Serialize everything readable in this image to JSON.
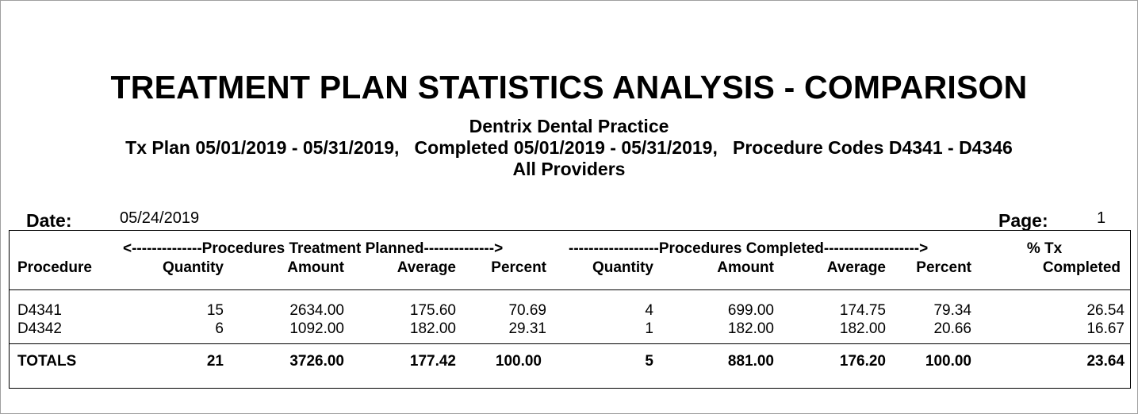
{
  "report": {
    "title": "TREATMENT PLAN STATISTICS ANALYSIS - COMPARISON",
    "practice": "Dentrix Dental Practice",
    "criteria": "Tx Plan 05/01/2019 - 05/31/2019,   Completed 05/01/2019 - 05/31/2019,   Procedure Codes D4341 - D4346",
    "providers": "All Providers",
    "date_label": "Date:",
    "date_value": "05/24/2019",
    "page_label": "Page:",
    "page_value": "1"
  },
  "table": {
    "group_planned": "<--------------Procedures Treatment Planned-------------->",
    "group_completed": "------------------Procedures Completed------------------->",
    "group_pct_top": "% Tx",
    "headers": {
      "procedure": "Procedure",
      "quantity": "Quantity",
      "amount": "Amount",
      "average": "Average",
      "percent": "Percent",
      "c_quantity": "Quantity",
      "c_amount": "Amount",
      "c_average": "Average",
      "c_percent": "Percent",
      "completed": "Completed"
    },
    "rows": [
      {
        "procedure": "D4341",
        "quantity": "15",
        "amount": "2634.00",
        "average": "175.60",
        "percent": "70.69",
        "c_quantity": "4",
        "c_amount": "699.00",
        "c_average": "174.75",
        "c_percent": "79.34",
        "completed": "26.54"
      },
      {
        "procedure": "D4342",
        "quantity": "6",
        "amount": "1092.00",
        "average": "182.00",
        "percent": "29.31",
        "c_quantity": "1",
        "c_amount": "182.00",
        "c_average": "182.00",
        "c_percent": "20.66",
        "completed": "16.67"
      }
    ],
    "totals": {
      "procedure": "TOTALS",
      "quantity": "21",
      "amount": "3726.00",
      "average": "177.42",
      "percent": "100.00",
      "c_quantity": "5",
      "c_amount": "881.00",
      "c_average": "176.20",
      "c_percent": "100.00",
      "completed": "23.64"
    }
  }
}
